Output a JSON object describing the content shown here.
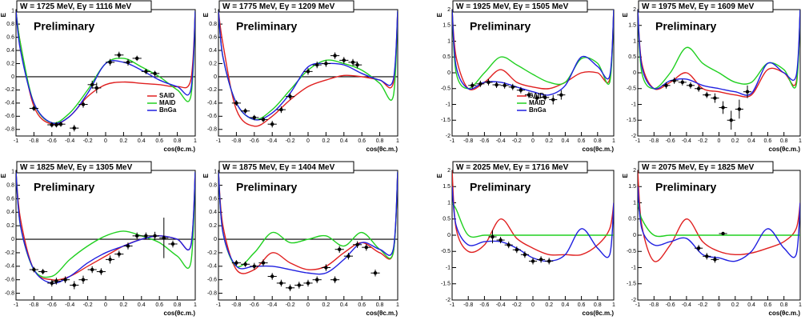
{
  "chart_data": [
    {
      "type": "line",
      "title": "W = 1725 MeV, Eγ = 1116 MeV",
      "annotation": "Preliminary",
      "xlabel": "cos(θc.m.)",
      "ylabel": "E",
      "xlim": [
        -1,
        1
      ],
      "xticks": [
        -1,
        -0.8,
        -0.6,
        -0.4,
        -0.2,
        0,
        0.2,
        0.4,
        0.6,
        0.8,
        1
      ],
      "ylim": [
        -0.9,
        1.02
      ],
      "yticks": [
        -0.8,
        -0.6,
        -0.4,
        -0.2,
        0,
        0.2,
        0.4,
        0.6,
        0.8,
        1
      ],
      "zero_line": true,
      "legend": "lower right",
      "x": [
        -1,
        -0.95,
        -0.8,
        -0.6,
        -0.4,
        -0.2,
        0,
        0.2,
        0.4,
        0.6,
        0.8,
        0.95,
        1
      ],
      "series": [
        {
          "name": "SAID",
          "color": "#e02020",
          "values": [
            1,
            0.5,
            -0.45,
            -0.72,
            -0.6,
            -0.3,
            -0.12,
            -0.08,
            -0.1,
            -0.12,
            -0.15,
            -0.05,
            1
          ]
        },
        {
          "name": "MAID",
          "color": "#20d020",
          "values": [
            1,
            0.5,
            -0.4,
            -0.7,
            -0.55,
            -0.2,
            0.2,
            0.28,
            0.15,
            0,
            -0.2,
            -0.3,
            1
          ]
        },
        {
          "name": "BnGa",
          "color": "#2020e0",
          "values": [
            1,
            0.4,
            -0.4,
            -0.7,
            -0.6,
            -0.25,
            0.2,
            0.22,
            0.1,
            -0.05,
            -0.15,
            -0.2,
            1
          ]
        }
      ],
      "points": {
        "xerr": 0.05,
        "x": [
          -0.8,
          -0.6,
          -0.55,
          -0.5,
          -0.35,
          -0.25,
          -0.15,
          -0.1,
          0.05,
          0.15,
          0.25,
          0.35,
          0.45,
          0.55
        ],
        "y": [
          -0.48,
          -0.73,
          -0.73,
          -0.72,
          -0.78,
          -0.42,
          -0.12,
          -0.17,
          0.22,
          0.33,
          0.22,
          0.28,
          0.08,
          0.05
        ],
        "yerr": [
          0.04,
          0.04,
          0.04,
          0.04,
          0.05,
          0.05,
          0.06,
          0.08,
          0.05,
          0.05,
          0.05,
          0.04,
          0.04,
          0.04
        ]
      }
    },
    {
      "type": "line",
      "title": "W = 1775 MeV, Eγ = 1209 MeV",
      "annotation": "Preliminary",
      "xlabel": "cos(θc.m.)",
      "ylabel": "E",
      "xlim": [
        -1,
        1
      ],
      "xticks": [
        -1,
        -0.8,
        -0.6,
        -0.4,
        -0.2,
        0,
        0.2,
        0.4,
        0.6,
        0.8,
        1
      ],
      "ylim": [
        -0.9,
        1.02
      ],
      "yticks": [
        -0.8,
        -0.6,
        -0.4,
        -0.2,
        0,
        0.2,
        0.4,
        0.6,
        0.8,
        1
      ],
      "zero_line": true,
      "x": [
        -1,
        -0.95,
        -0.8,
        -0.6,
        -0.4,
        -0.2,
        0,
        0.2,
        0.4,
        0.6,
        0.8,
        0.95,
        1
      ],
      "series": [
        {
          "color": "#e02020",
          "values": [
            1,
            0.5,
            -0.5,
            -0.75,
            -0.6,
            -0.35,
            -0.15,
            -0.05,
            0.02,
            0,
            -0.05,
            -0.1,
            1
          ]
        },
        {
          "color": "#20d020",
          "values": [
            1,
            0.3,
            -0.4,
            -0.65,
            -0.5,
            -0.2,
            0.1,
            0.25,
            0.2,
            0.1,
            -0.1,
            -0.3,
            1
          ]
        },
        {
          "color": "#2020e0",
          "values": [
            1,
            0.3,
            -0.4,
            -0.65,
            -0.55,
            -0.25,
            0.15,
            0.2,
            0.18,
            0.05,
            -0.05,
            -0.05,
            1
          ]
        }
      ],
      "points": {
        "xerr": 0.05,
        "x": [
          -0.8,
          -0.7,
          -0.6,
          -0.5,
          -0.4,
          -0.3,
          -0.2,
          0,
          0.1,
          0.2,
          0.3,
          0.4,
          0.5,
          0.55
        ],
        "y": [
          -0.4,
          -0.52,
          -0.62,
          -0.65,
          -0.72,
          -0.5,
          -0.3,
          0.08,
          0.18,
          0.2,
          0.32,
          0.25,
          0.22,
          0.18
        ],
        "yerr": [
          0.04,
          0.04,
          0.04,
          0.04,
          0.05,
          0.05,
          0.05,
          0.05,
          0.05,
          0.05,
          0.05,
          0.05,
          0.05,
          0.05
        ]
      }
    },
    {
      "type": "line",
      "title": "W = 1925 MeV, Eγ = 1505 MeV",
      "annotation": "Preliminary",
      "xlabel": "cos(θc.m.)",
      "ylabel": "E",
      "xlim": [
        -1,
        1
      ],
      "xticks": [
        -1,
        -0.8,
        -0.6,
        -0.4,
        -0.2,
        0,
        0.2,
        0.4,
        0.6,
        0.8,
        1
      ],
      "ylim": [
        -2,
        2
      ],
      "yticks": [
        -2,
        -1.5,
        -1,
        -0.5,
        0,
        0.5,
        1,
        1.5,
        2
      ],
      "zero_line": false,
      "legend": "lower center",
      "x": [
        -1,
        -0.95,
        -0.8,
        -0.6,
        -0.4,
        -0.2,
        0,
        0.2,
        0.4,
        0.6,
        0.8,
        0.95,
        1
      ],
      "series": [
        {
          "name": "SAID",
          "color": "#e02020",
          "values": [
            2,
            0.5,
            -0.5,
            -0.3,
            0.1,
            -0.3,
            -0.45,
            -0.5,
            -0.3,
            0,
            0,
            -0.2,
            2
          ]
        },
        {
          "name": "MAID",
          "color": "#20d020",
          "values": [
            2,
            0,
            -0.5,
            0,
            0.5,
            0.25,
            -0.05,
            -0.3,
            -0.3,
            0.45,
            0.3,
            -0.3,
            2
          ]
        },
        {
          "name": "BnGa",
          "color": "#2020e0",
          "values": [
            2,
            0.2,
            -0.5,
            -0.3,
            -0.3,
            -0.45,
            -0.6,
            -0.7,
            -0.4,
            0.5,
            0.2,
            -0.1,
            2
          ]
        }
      ],
      "points": {
        "xerr": 0.05,
        "x": [
          -0.75,
          -0.65,
          -0.55,
          -0.45,
          -0.35,
          -0.25,
          -0.15,
          -0.05,
          0.05,
          0.15,
          0.25,
          0.35
        ],
        "y": [
          -0.4,
          -0.35,
          -0.3,
          -0.38,
          -0.4,
          -0.45,
          -0.55,
          -0.7,
          -0.8,
          -0.78,
          -0.85,
          -0.7
        ],
        "yerr": [
          0.1,
          0.1,
          0.1,
          0.1,
          0.1,
          0.1,
          0.1,
          0.1,
          0.1,
          0.1,
          0.15,
          0.15
        ]
      }
    },
    {
      "type": "line",
      "title": "W = 1975 MeV, Eγ = 1609 MeV",
      "annotation": "Preliminary",
      "xlabel": "cos(θc.m.)",
      "ylabel": "E",
      "xlim": [
        -1,
        1
      ],
      "xticks": [
        -1,
        -0.8,
        -0.6,
        -0.4,
        -0.2,
        0,
        0.2,
        0.4,
        0.6,
        0.8,
        1
      ],
      "ylim": [
        -2,
        2
      ],
      "yticks": [
        -2,
        -1.5,
        -1,
        -0.5,
        0,
        0.5,
        1,
        1.5,
        2
      ],
      "zero_line": false,
      "x": [
        -1,
        -0.95,
        -0.8,
        -0.6,
        -0.4,
        -0.2,
        0,
        0.2,
        0.4,
        0.6,
        0.8,
        0.95,
        1
      ],
      "series": [
        {
          "color": "#e02020",
          "values": [
            2,
            0.3,
            -0.5,
            -0.3,
            0,
            -0.5,
            -0.6,
            -0.7,
            -0.7,
            0.1,
            0,
            -0.3,
            2
          ]
        },
        {
          "color": "#20d020",
          "values": [
            2,
            0,
            -0.5,
            0,
            0.8,
            0.3,
            0,
            -0.3,
            -0.3,
            0.3,
            0.1,
            -0.4,
            2
          ]
        },
        {
          "color": "#2020e0",
          "values": [
            2,
            0.2,
            -0.5,
            -0.25,
            -0.2,
            -0.4,
            -0.5,
            -0.6,
            -0.65,
            0.3,
            0,
            -0.1,
            2
          ]
        }
      ],
      "points": {
        "xerr": 0.05,
        "x": [
          -0.65,
          -0.55,
          -0.45,
          -0.35,
          -0.25,
          -0.15,
          -0.05,
          0.05,
          0.15,
          0.25,
          0.35
        ],
        "y": [
          -0.4,
          -0.25,
          -0.3,
          -0.4,
          -0.5,
          -0.7,
          -0.8,
          -1.1,
          -1.5,
          -1.15,
          -0.6
        ],
        "yerr": [
          0.1,
          0.1,
          0.1,
          0.1,
          0.1,
          0.1,
          0.15,
          0.2,
          0.3,
          0.3,
          0.2
        ]
      }
    },
    {
      "type": "line",
      "title": "W = 1825 MeV, Eγ = 1305 MeV",
      "annotation": "Preliminary",
      "xlabel": "cos(θc.m.)",
      "ylabel": "E",
      "xlim": [
        -1,
        1
      ],
      "xticks": [
        -1,
        -0.8,
        -0.6,
        -0.4,
        -0.2,
        0,
        0.2,
        0.4,
        0.6,
        0.8,
        1
      ],
      "ylim": [
        -0.9,
        1.02
      ],
      "yticks": [
        -0.8,
        -0.6,
        -0.4,
        -0.2,
        0,
        0.2,
        0.4,
        0.6,
        0.8,
        1
      ],
      "zero_line": true,
      "x": [
        -1,
        -0.95,
        -0.8,
        -0.6,
        -0.4,
        -0.2,
        0,
        0.2,
        0.4,
        0.6,
        0.8,
        0.95,
        1
      ],
      "series": [
        {
          "color": "#e02020",
          "values": [
            1,
            0.3,
            -0.45,
            -0.6,
            -0.55,
            -0.4,
            -0.25,
            -0.1,
            0,
            0.05,
            0,
            -0.1,
            1
          ]
        },
        {
          "color": "#20d020",
          "values": [
            1,
            0.2,
            -0.45,
            -0.55,
            -0.3,
            -0.1,
            0.05,
            0.12,
            0.05,
            -0.05,
            -0.25,
            -0.35,
            1
          ]
        },
        {
          "color": "#2020e0",
          "values": [
            1,
            0.2,
            -0.45,
            -0.65,
            -0.55,
            -0.35,
            -0.2,
            -0.1,
            0,
            0.05,
            0,
            -0.1,
            1
          ]
        }
      ],
      "points": {
        "xerr": 0.05,
        "x": [
          -0.8,
          -0.7,
          -0.6,
          -0.55,
          -0.45,
          -0.35,
          -0.25,
          -0.15,
          -0.05,
          0.05,
          0.15,
          0.25,
          0.35,
          0.45,
          0.55,
          0.65,
          0.75
        ],
        "y": [
          -0.45,
          -0.48,
          -0.65,
          -0.62,
          -0.6,
          -0.68,
          -0.6,
          -0.45,
          -0.48,
          -0.3,
          -0.22,
          -0.1,
          0.05,
          0.05,
          0.05,
          0.02,
          -0.07
        ],
        "yerr": [
          0.04,
          0.04,
          0.05,
          0.05,
          0.05,
          0.06,
          0.06,
          0.05,
          0.05,
          0.06,
          0.05,
          0.05,
          0.05,
          0.05,
          0.06,
          0.3,
          0.05
        ]
      }
    },
    {
      "type": "line",
      "title": "W = 1875 MeV, Eγ = 1404 MeV",
      "annotation": "Preliminary",
      "xlabel": "cos(θc.m.)",
      "ylabel": "E",
      "xlim": [
        -1,
        1
      ],
      "xticks": [
        -1,
        -0.8,
        -0.6,
        -0.4,
        -0.2,
        0,
        0.2,
        0.4,
        0.6,
        0.8,
        1
      ],
      "ylim": [
        -0.9,
        1.02
      ],
      "yticks": [
        -0.8,
        -0.6,
        -0.4,
        -0.2,
        0,
        0.2,
        0.4,
        0.6,
        0.8,
        1
      ],
      "zero_line": true,
      "x": [
        -1,
        -0.95,
        -0.8,
        -0.6,
        -0.4,
        -0.2,
        0,
        0.2,
        0.4,
        0.6,
        0.8,
        0.95,
        1
      ],
      "series": [
        {
          "color": "#e02020",
          "values": [
            1,
            0.2,
            -0.45,
            -0.45,
            -0.2,
            -0.35,
            -0.45,
            -0.4,
            -0.2,
            -0.05,
            -0.2,
            -0.2,
            1
          ]
        },
        {
          "color": "#20d020",
          "values": [
            1,
            0.1,
            -0.4,
            -0.2,
            0.1,
            -0.05,
            0,
            0.05,
            -0.1,
            0.1,
            -0.15,
            -0.2,
            1
          ]
        },
        {
          "color": "#2020e0",
          "values": [
            1,
            0.1,
            -0.4,
            -0.4,
            -0.4,
            -0.45,
            -0.5,
            -0.5,
            -0.3,
            -0.05,
            -0.15,
            -0.15,
            1
          ]
        }
      ],
      "points": {
        "xerr": 0.05,
        "x": [
          -0.8,
          -0.7,
          -0.6,
          -0.5,
          -0.4,
          -0.3,
          -0.2,
          -0.1,
          0,
          0.1,
          0.2,
          0.3,
          0.35,
          0.45,
          0.55,
          0.65,
          0.75
        ],
        "y": [
          -0.35,
          -0.37,
          -0.4,
          -0.35,
          -0.55,
          -0.65,
          -0.72,
          -0.68,
          -0.65,
          -0.6,
          -0.42,
          -0.6,
          -0.15,
          -0.25,
          -0.08,
          -0.12,
          -0.5
        ],
        "yerr": [
          0.04,
          0.04,
          0.05,
          0.05,
          0.05,
          0.05,
          0.05,
          0.05,
          0.05,
          0.05,
          0.05,
          0.05,
          0.05,
          0.05,
          0.05,
          0.05,
          0.05
        ]
      }
    },
    {
      "type": "line",
      "title": "W = 2025 MeV, Eγ = 1716 MeV",
      "annotation": "Preliminary",
      "xlabel": "cos(θc.m.)",
      "ylabel": "E",
      "xlim": [
        -1,
        1
      ],
      "xticks": [
        -1,
        -0.8,
        -0.6,
        -0.4,
        -0.2,
        0,
        0.2,
        0.4,
        0.6,
        0.8,
        1
      ],
      "ylim": [
        -2,
        2
      ],
      "yticks": [
        -2,
        -1.5,
        -1,
        -0.5,
        0,
        0.5,
        1,
        1.5,
        2
      ],
      "zero_line": false,
      "x": [
        -1,
        -0.95,
        -0.8,
        -0.6,
        -0.4,
        -0.2,
        0,
        0.2,
        0.4,
        0.6,
        0.8,
        0.95,
        1
      ],
      "series": [
        {
          "color": "#e02020",
          "values": [
            2,
            0.2,
            -0.5,
            -0.3,
            0.5,
            -0.1,
            -0.4,
            -0.6,
            -0.6,
            -0.6,
            -0.3,
            0.2,
            1
          ]
        },
        {
          "color": "#20d020",
          "values": [
            1,
            0.8,
            0,
            0,
            0,
            0,
            0,
            0,
            0,
            0,
            0,
            0,
            0
          ]
        },
        {
          "color": "#2020e0",
          "values": [
            1.5,
            0.3,
            -0.3,
            -0.2,
            -0.2,
            -0.4,
            -0.7,
            -0.8,
            -0.6,
            0.2,
            -0.4,
            -0.6,
            1
          ]
        }
      ],
      "points": {
        "xerr": 0.05,
        "x": [
          -0.5,
          -0.4,
          -0.3,
          -0.2,
          -0.1,
          0,
          0.1,
          0.2
        ],
        "y": [
          -0.05,
          -0.15,
          -0.3,
          -0.45,
          -0.6,
          -0.8,
          -0.75,
          -0.8
        ],
        "yerr": [
          0.2,
          0.1,
          0.1,
          0.1,
          0.1,
          0.1,
          0.1,
          0.1
        ]
      }
    },
    {
      "type": "line",
      "title": "W = 2075 MeV, Eγ = 1825 MeV",
      "annotation": "Preliminary",
      "xlabel": "cos(θc.m.)",
      "ylabel": "E",
      "xlim": [
        -1,
        1
      ],
      "xticks": [
        -1,
        -0.8,
        -0.6,
        -0.4,
        -0.2,
        0,
        0.2,
        0.4,
        0.6,
        0.8,
        1
      ],
      "ylim": [
        -2,
        2
      ],
      "yticks": [
        -2,
        -1.5,
        -1,
        -0.5,
        0,
        0.5,
        1,
        1.5,
        2
      ],
      "zero_line": false,
      "x": [
        -1,
        -0.95,
        -0.8,
        -0.6,
        -0.4,
        -0.2,
        0,
        0.2,
        0.4,
        0.6,
        0.8,
        0.95,
        1
      ],
      "series": [
        {
          "color": "#e02020",
          "values": [
            2,
            0.3,
            -0.8,
            -0.3,
            0.5,
            -0.2,
            -0.5,
            -0.6,
            -0.55,
            -0.4,
            -0.2,
            0.2,
            1
          ]
        },
        {
          "color": "#20d020",
          "values": [
            1,
            0.5,
            0,
            0,
            0,
            0,
            0,
            0,
            0,
            0,
            0,
            0,
            0
          ]
        },
        {
          "color": "#2020e0",
          "values": [
            1.5,
            0.2,
            -0.3,
            -0.2,
            -0.1,
            -0.6,
            -0.7,
            -0.8,
            -0.5,
            0.2,
            -0.4,
            -0.6,
            1
          ]
        }
      ],
      "points": {
        "xerr": 0.05,
        "x": [
          -0.25,
          -0.15,
          -0.05,
          0.05
        ],
        "y": [
          -0.4,
          -0.65,
          -0.75,
          0.05
        ],
        "yerr": [
          0.1,
          0.1,
          0.1,
          0.05
        ]
      }
    }
  ]
}
